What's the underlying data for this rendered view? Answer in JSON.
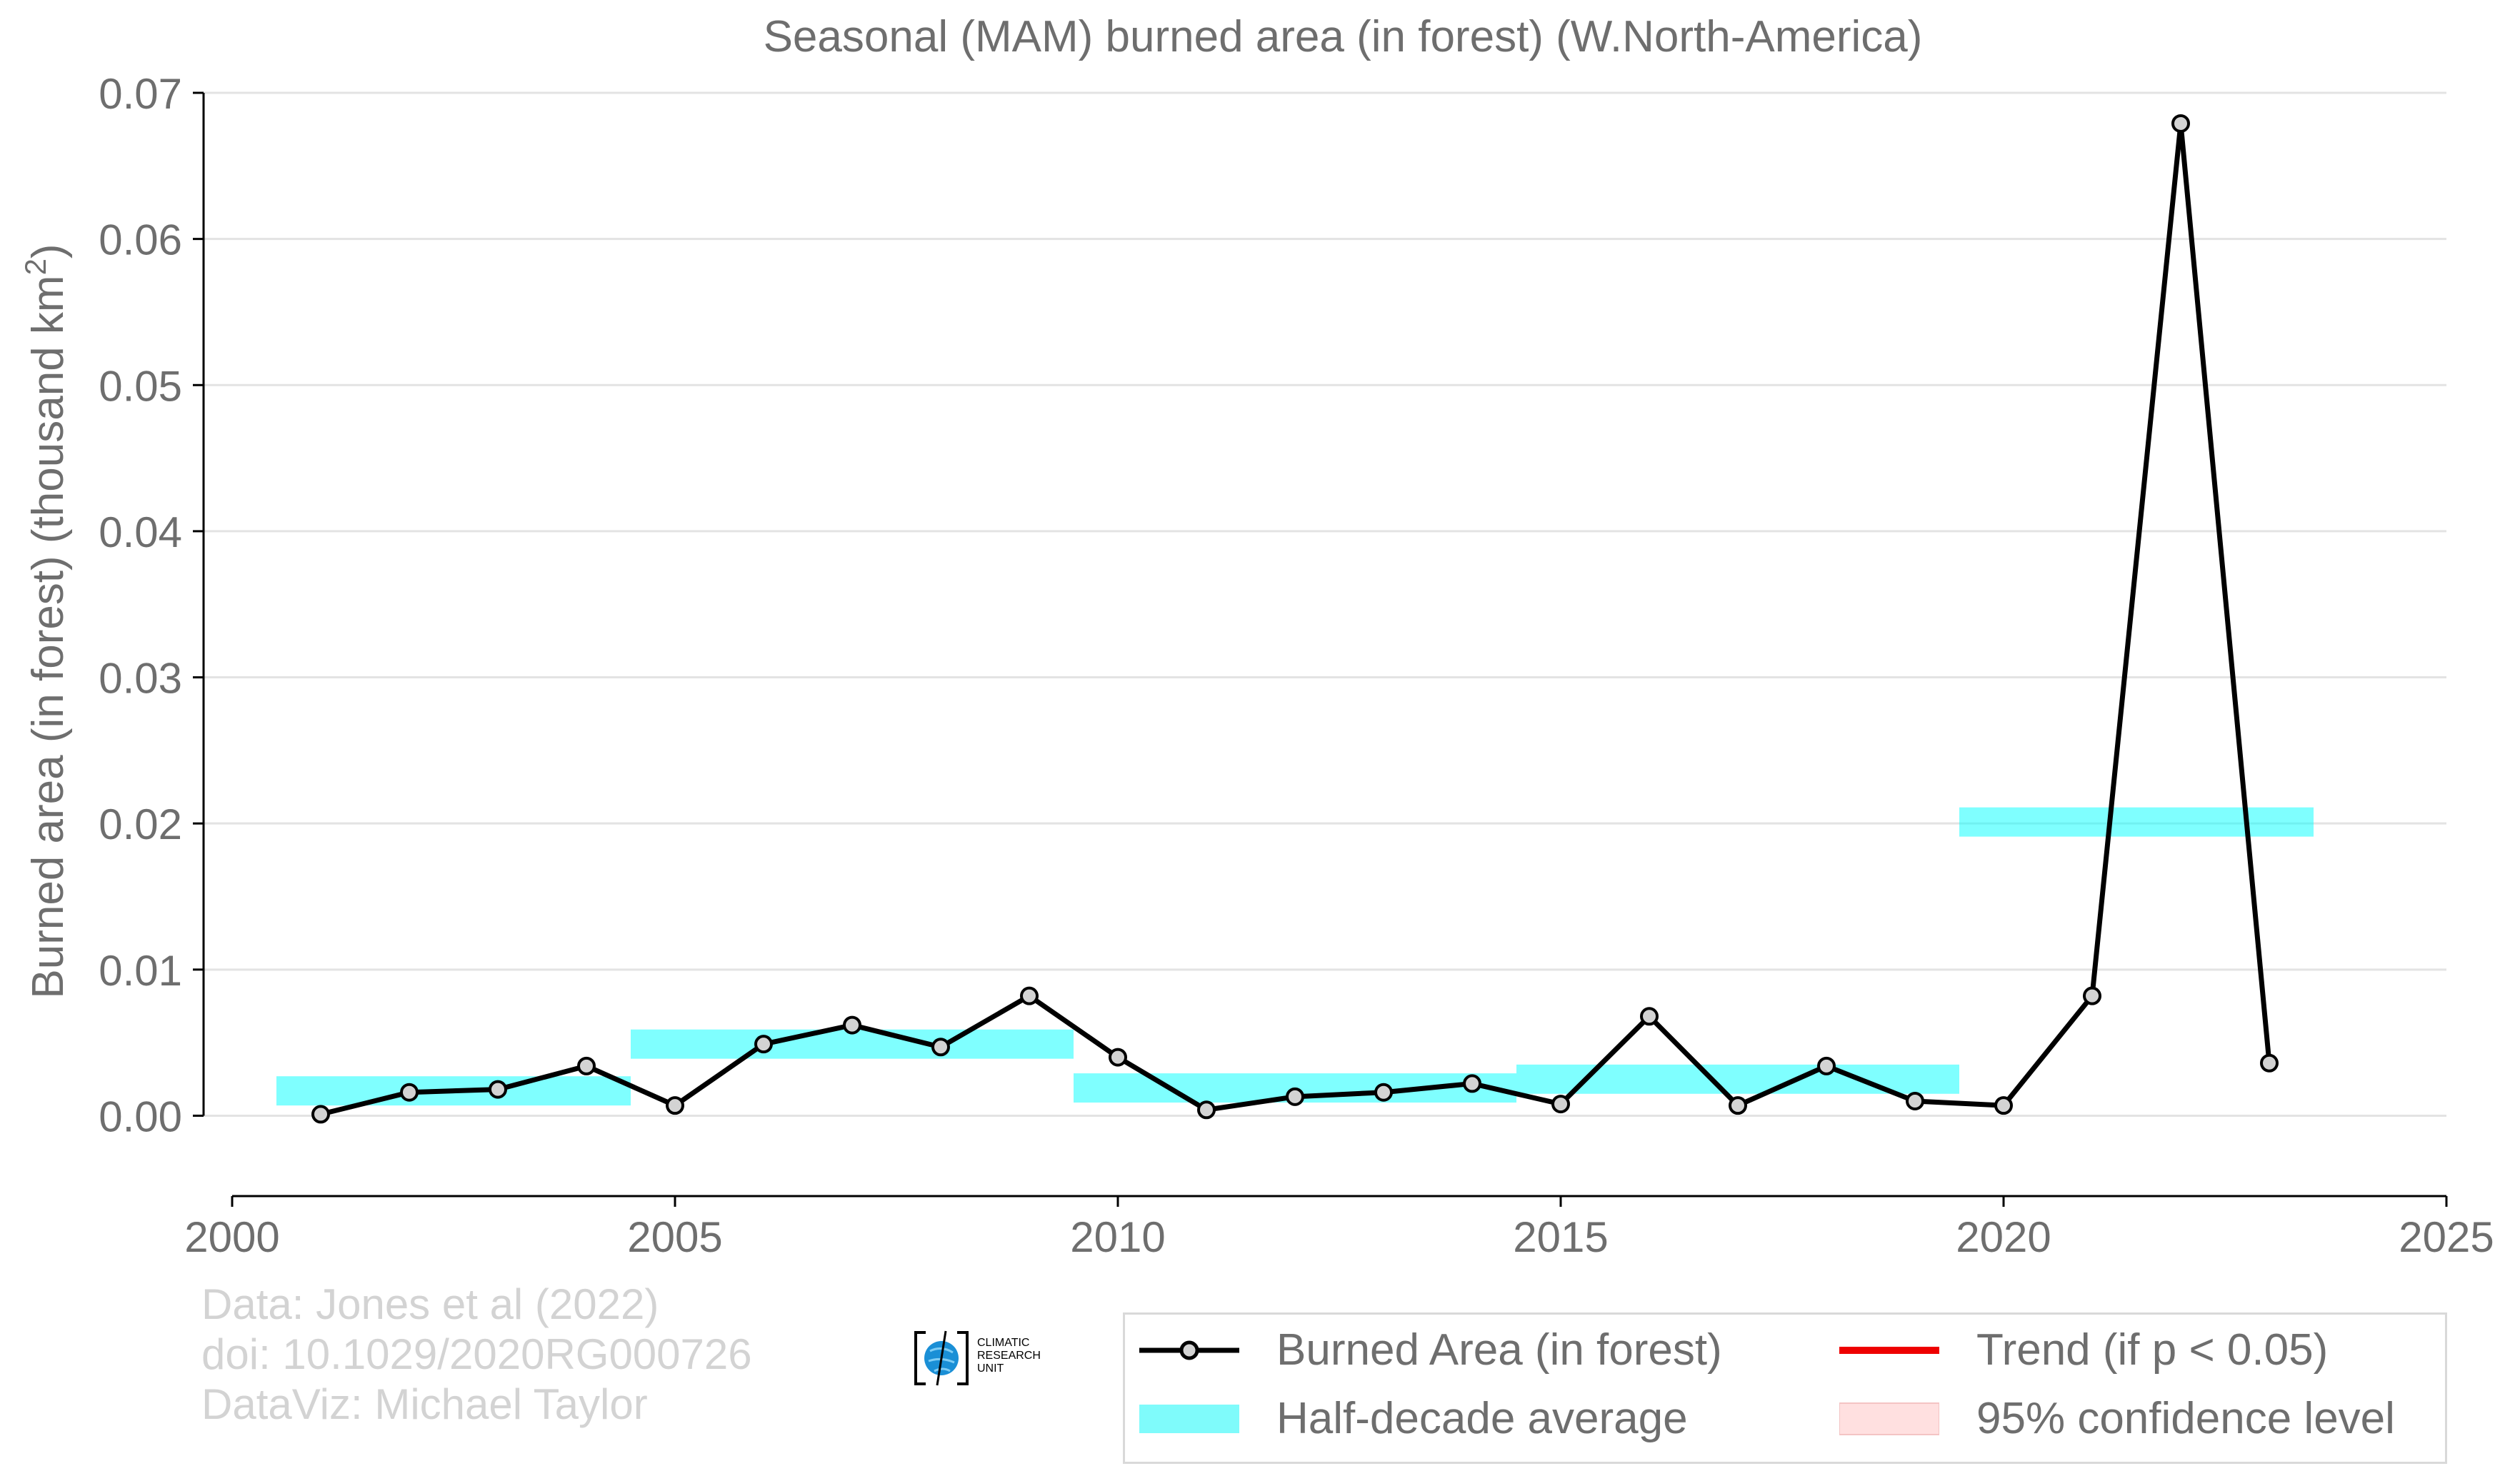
{
  "chart_data": {
    "type": "line",
    "title": "Seasonal (MAM) burned area (in forest) (W.North-America)",
    "xlabel": "",
    "ylabel": "Burned area (in forest) (thousand km",
    "ylabel_sup": "2",
    "ylabel_end": ")",
    "xlim": [
      2000,
      2025
    ],
    "ylim": [
      -0.0055,
      0.07
    ],
    "x_ticks": [
      2000,
      2005,
      2010,
      2015,
      2020,
      2025
    ],
    "x_tick_labels": [
      "2000",
      "2005",
      "2010",
      "2015",
      "2020",
      "2025"
    ],
    "y_ticks": [
      0.0,
      0.01,
      0.02,
      0.03,
      0.04,
      0.05,
      0.06,
      0.07
    ],
    "y_tick_labels": [
      "0.00",
      "0.01",
      "0.02",
      "0.03",
      "0.04",
      "0.05",
      "0.06",
      "0.07"
    ],
    "grid": "horizontal",
    "series": [
      {
        "name": "Burned Area (in forest)",
        "color": "#000000",
        "marker_fill": "#d3d3d3",
        "x": [
          2001,
          2002,
          2003,
          2004,
          2005,
          2006,
          2007,
          2008,
          2009,
          2010,
          2011,
          2012,
          2013,
          2014,
          2015,
          2016,
          2017,
          2018,
          2019,
          2020,
          2021,
          2022,
          2023
        ],
        "y": [
          0.0001,
          0.0016,
          0.0018,
          0.0034,
          0.0007,
          0.0049,
          0.0062,
          0.0047,
          0.0082,
          0.004,
          0.0004,
          0.0013,
          0.0016,
          0.0022,
          0.0008,
          0.0068,
          0.0007,
          0.0034,
          0.001,
          0.0007,
          0.0082,
          0.0679,
          0.0036
        ]
      }
    ],
    "half_decade_averages": {
      "name": "Half-decade average",
      "color": "#00ffff",
      "opacity": 0.5,
      "band_halfwidth": 0.001,
      "segments": [
        {
          "x0": 2000.5,
          "x1": 2004.5,
          "value": 0.0017
        },
        {
          "x0": 2004.5,
          "x1": 2009.5,
          "value": 0.0049
        },
        {
          "x0": 2009.5,
          "x1": 2014.5,
          "value": 0.0019
        },
        {
          "x0": 2014.5,
          "x1": 2019.5,
          "value": 0.0025
        },
        {
          "x0": 2019.5,
          "x1": 2023.5,
          "value": 0.0201
        }
      ]
    },
    "legend_position": "bottom-right",
    "legend": [
      {
        "label": "Burned Area (in forest)",
        "key": "line-marker",
        "color": "#000000"
      },
      {
        "label": "Trend (if p < 0.05)",
        "key": "line",
        "color": "#ee0000"
      },
      {
        "label": "Half-decade average",
        "key": "band",
        "color": "#7ffbfb"
      },
      {
        "label": "95% confidence level",
        "key": "band",
        "color": "#ffe0e0"
      }
    ]
  },
  "credits": {
    "line1": "Data: Jones et al (2022)",
    "line2": "doi: 10.1029/2020RG000726",
    "line3": "DataViz: Michael Taylor"
  },
  "logo": {
    "lines": [
      "CLIMATIC",
      "RESEARCH",
      "UNIT"
    ],
    "color": "#1a8fd6"
  }
}
